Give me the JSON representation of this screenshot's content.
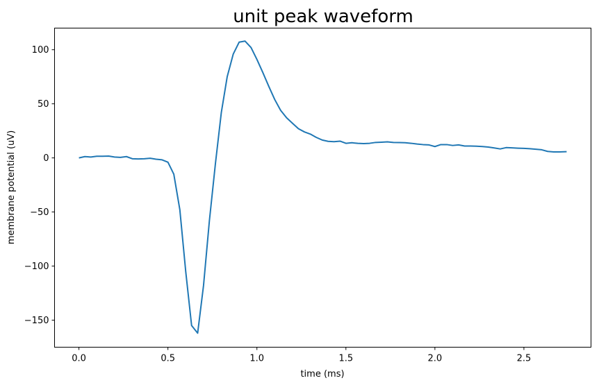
{
  "chart_data": {
    "type": "line",
    "title": "unit peak waveform",
    "xlabel": "time (ms)",
    "ylabel": "membrane potential (uV)",
    "xlim": [
      -0.137,
      2.877
    ],
    "ylim": [
      -175,
      120
    ],
    "xticks": [
      0.0,
      0.5,
      1.0,
      1.5,
      2.0,
      2.5
    ],
    "xtick_labels": [
      "0.0",
      "0.5",
      "1.0",
      "1.5",
      "2.0",
      "2.5"
    ],
    "yticks": [
      100,
      50,
      0,
      -50,
      -100,
      -150
    ],
    "ytick_labels": [
      "100",
      "50",
      "0",
      "−50",
      "−100",
      "−150"
    ],
    "grid": false,
    "series": [
      {
        "color": "#1f77b4",
        "x": [
          0.0,
          0.033,
          0.067,
          0.1,
          0.133,
          0.167,
          0.2,
          0.233,
          0.267,
          0.3,
          0.333,
          0.367,
          0.4,
          0.433,
          0.467,
          0.5,
          0.533,
          0.567,
          0.6,
          0.633,
          0.667,
          0.7,
          0.733,
          0.767,
          0.8,
          0.833,
          0.867,
          0.9,
          0.933,
          0.967,
          1.0,
          1.033,
          1.067,
          1.1,
          1.133,
          1.167,
          1.2,
          1.233,
          1.267,
          1.3,
          1.333,
          1.367,
          1.4,
          1.433,
          1.467,
          1.5,
          1.533,
          1.567,
          1.6,
          1.633,
          1.667,
          1.7,
          1.733,
          1.767,
          1.8,
          1.833,
          1.867,
          1.9,
          1.933,
          1.967,
          2.0,
          2.033,
          2.067,
          2.1,
          2.133,
          2.167,
          2.2,
          2.233,
          2.267,
          2.3,
          2.333,
          2.367,
          2.4,
          2.433,
          2.467,
          2.5,
          2.533,
          2.567,
          2.6,
          2.633,
          2.667,
          2.7,
          2.74
        ],
        "y": [
          0,
          1.2,
          0.8,
          1.5,
          1.5,
          1.7,
          0.8,
          0.5,
          1.2,
          -0.8,
          -1.0,
          -0.8,
          -0.3,
          -1.2,
          -1.8,
          -4,
          -15,
          -48,
          -105,
          -155,
          -162,
          -118,
          -58,
          -5,
          42,
          75,
          96,
          107,
          108,
          102,
          91,
          79,
          66,
          54,
          44,
          37,
          32,
          27,
          24,
          22,
          19,
          16.5,
          15.3,
          15,
          15.5,
          13.5,
          14,
          13.5,
          13.2,
          13.5,
          14.3,
          14.5,
          14.8,
          14.3,
          14.2,
          14,
          13.5,
          12.8,
          12.3,
          12,
          10.5,
          12.3,
          12.3,
          11.5,
          12,
          11,
          11,
          10.8,
          10.5,
          10,
          9.2,
          8.3,
          9.5,
          9.3,
          9,
          8.8,
          8.5,
          8,
          7.5,
          6,
          5.5,
          5.5,
          5.8
        ]
      }
    ]
  }
}
